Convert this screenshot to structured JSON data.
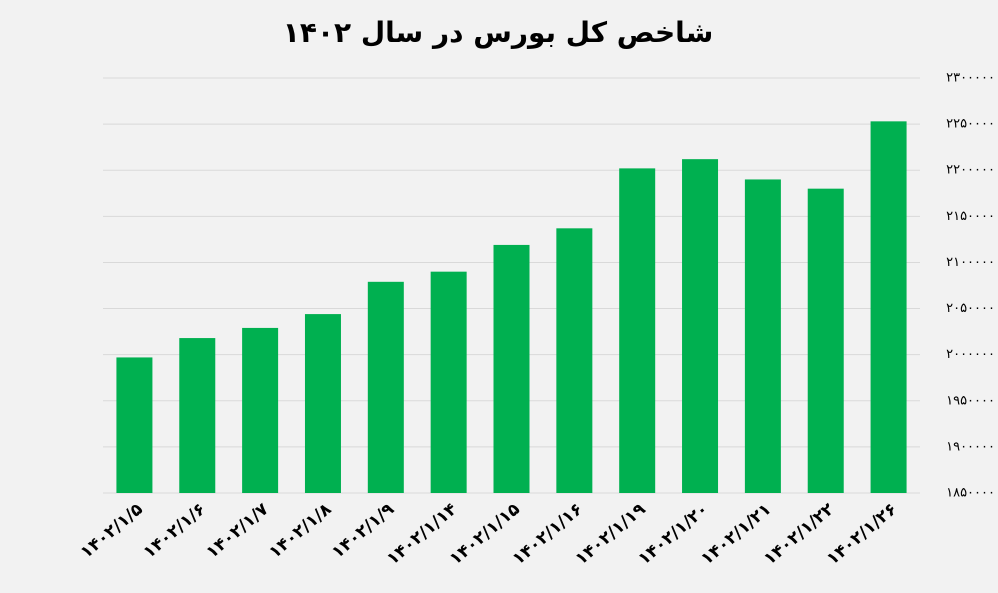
{
  "chart_data": {
    "type": "bar",
    "title": "شاخص کل بورس در سال ۱۴۰۲",
    "categories": [
      "۱۴۰۲/۱/۵",
      "۱۴۰۲/۱/۶",
      "۱۴۰۲/۱/۷",
      "۱۴۰۲/۱/۸",
      "۱۴۰۲/۱/۹",
      "۱۴۰۲/۱/۱۴",
      "۱۴۰۲/۱/۱۵",
      "۱۴۰۲/۱/۱۶",
      "۱۴۰۲/۱/۱۹",
      "۱۴۰۲/۱/۲۰",
      "۱۴۰۲/۱/۲۱",
      "۱۴۰۲/۱/۲۲",
      "۱۴۰۲/۱/۲۶"
    ],
    "values": [
      1997000,
      2018000,
      2029000,
      2044000,
      2079000,
      2090000,
      2119000,
      2137000,
      2202000,
      2212000,
      2190000,
      2180000,
      2253000
    ],
    "color": "#00b050",
    "ylim": [
      1850000,
      2300000
    ],
    "yticks": [
      {
        "value": 1850000,
        "label": "۱۸۵۰۰۰۰"
      },
      {
        "value": 1900000,
        "label": "۱۹۰۰۰۰۰"
      },
      {
        "value": 1950000,
        "label": "۱۹۵۰۰۰۰"
      },
      {
        "value": 2000000,
        "label": "۲۰۰۰۰۰۰"
      },
      {
        "value": 2050000,
        "label": "۲۰۵۰۰۰۰"
      },
      {
        "value": 2100000,
        "label": "۲۱۰۰۰۰۰"
      },
      {
        "value": 2150000,
        "label": "۲۱۵۰۰۰۰"
      },
      {
        "value": 2200000,
        "label": "۲۲۰۰۰۰۰"
      },
      {
        "value": 2250000,
        "label": "۲۲۵۰۰۰۰"
      },
      {
        "value": 2300000,
        "label": "۲۳۰۰۰۰۰"
      }
    ],
    "grid": true
  }
}
